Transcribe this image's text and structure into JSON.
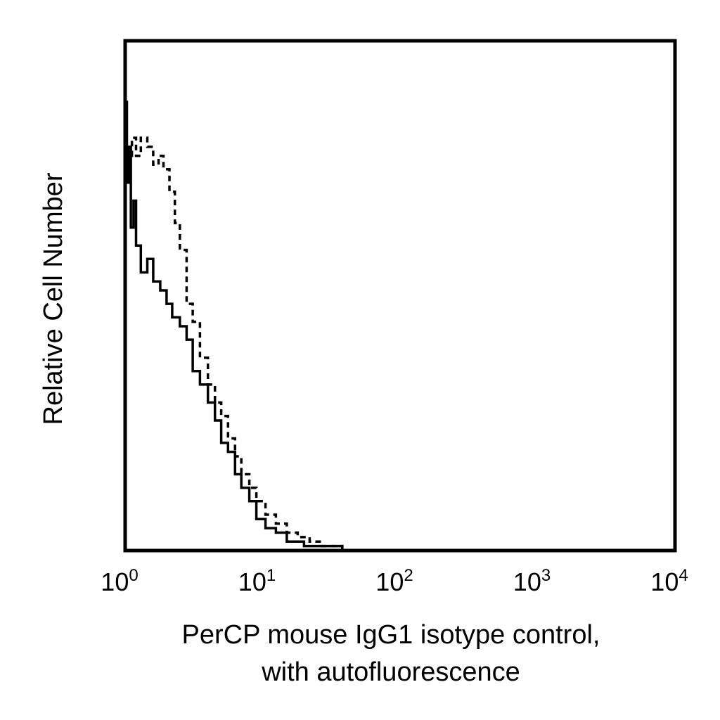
{
  "chart_data": {
    "type": "line",
    "title": "",
    "xlabel": [
      "PerCP mouse IgG1 isotype control,",
      "with autofluorescence"
    ],
    "ylabel": "Relative Cell Number",
    "x_scale": "log",
    "xlim": [
      1,
      10000
    ],
    "ylim": [
      0,
      100
    ],
    "grid": false,
    "x_ticks": [
      {
        "base": "10",
        "exp": "0"
      },
      {
        "base": "10",
        "exp": "1"
      },
      {
        "base": "10",
        "exp": "2"
      },
      {
        "base": "10",
        "exp": "3"
      },
      {
        "base": "10",
        "exp": "4"
      }
    ],
    "series": [
      {
        "style": "solid",
        "x": [
          1.0,
          1.03,
          1.06,
          1.1,
          1.15,
          1.2,
          1.3,
          1.45,
          1.6,
          1.8,
          2.0,
          2.2,
          2.5,
          2.8,
          3.1,
          3.5,
          4.0,
          4.5,
          5.0,
          5.6,
          6.3,
          7.0,
          8.0,
          9.0,
          10.5,
          12.5,
          15,
          20,
          25,
          30,
          38
        ],
        "y": [
          100,
          82,
          90,
          72,
          78,
          68,
          62,
          65,
          60,
          58,
          55,
          52,
          50,
          47,
          40,
          37,
          33,
          29,
          24,
          22,
          17,
          14,
          11,
          7,
          5,
          4,
          2,
          1,
          1,
          1,
          0
        ]
      },
      {
        "style": "dashed",
        "x": [
          1.0,
          1.06,
          1.12,
          1.2,
          1.3,
          1.45,
          1.6,
          1.75,
          1.9,
          2.1,
          2.3,
          2.5,
          2.8,
          3.1,
          3.5,
          4.0,
          4.5,
          5.0,
          5.6,
          6.3,
          7.0,
          8.0,
          9.0,
          10.5,
          12.5,
          15,
          18,
          22,
          27,
          33,
          38
        ],
        "y": [
          85,
          88,
          92,
          88,
          92,
          90,
          86,
          88,
          85,
          80,
          73,
          67,
          55,
          51,
          43,
          37,
          33,
          30,
          25,
          21,
          17,
          14,
          11,
          8,
          6,
          4,
          3,
          2,
          1,
          1,
          0
        ]
      }
    ]
  }
}
